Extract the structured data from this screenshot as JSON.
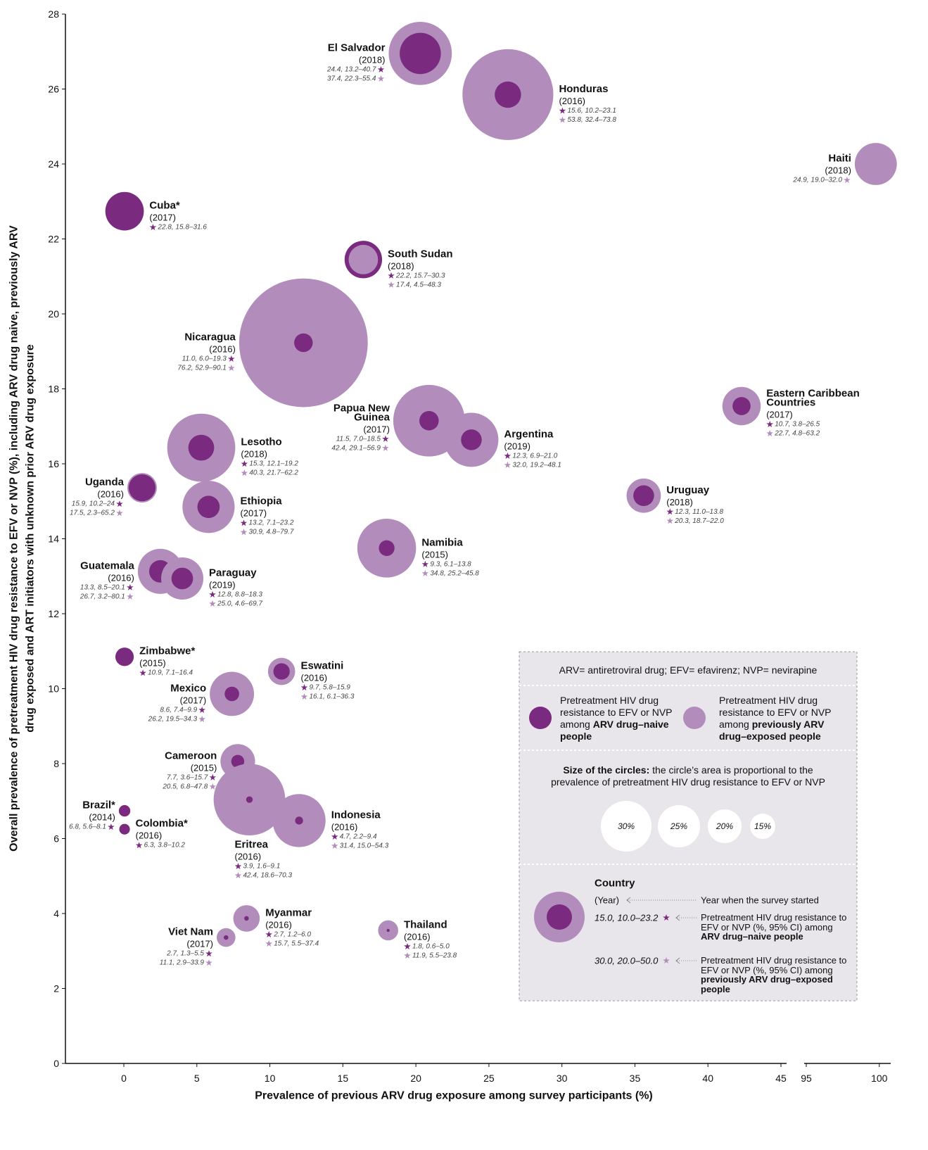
{
  "chart_data": {
    "type": "bubble",
    "xlabel": "Prevalence of previous ARV drug exposure among survey participants (%)",
    "ylabel": [
      "Overall prevalence of pretreatment HIV drug resistance to EFV or NVP (%), including ARV drug naive, previously ARV",
      "drug exposed and ART initiators with unknown prior ARV drug exposure"
    ],
    "xlim": [
      -4,
      100.7
    ],
    "xbreak": [
      45,
      95
    ],
    "xticks": [
      0,
      5,
      10,
      15,
      20,
      25,
      30,
      35,
      40,
      45,
      95,
      100
    ],
    "ylim": [
      0,
      28
    ],
    "yticks": [
      0,
      2,
      4,
      6,
      8,
      10,
      12,
      14,
      16,
      18,
      20,
      22,
      24,
      26,
      28
    ],
    "naive_color": "#7a2a7f",
    "exposed_color": "#b28dbb",
    "points": [
      {
        "name": [
          "El Salvador"
        ],
        "year": "(2018)",
        "x": 20.3,
        "y": 26.95,
        "naive": {
          "value": 24.4,
          "label": "24.4, 13.2–40.7"
        },
        "exposed": {
          "value": 37.4,
          "label": "37.4, 22.3–55.4"
        }
      },
      {
        "name": [
          "Honduras"
        ],
        "year": "(2016)",
        "x": 26.3,
        "y": 25.85,
        "naive": {
          "value": 15.6,
          "label": "15.6, 10.2–23.1"
        },
        "exposed": {
          "value": 53.8,
          "label": "53.8, 32.4–73.8"
        }
      },
      {
        "name": [
          "Haiti"
        ],
        "year": "(2018)",
        "x": 99.76,
        "y": 24.0,
        "exposed": {
          "value": 24.9,
          "label": "24.9, 19.0–32.0"
        }
      },
      {
        "name": [
          "Cuba*"
        ],
        "year": "(2017)",
        "x": 0.05,
        "y": 22.74,
        "naive": {
          "value": 22.8,
          "label": "22.8, 15.8–31.6"
        }
      },
      {
        "name": [
          "South Sudan"
        ],
        "year": "(2018)",
        "x": 16.4,
        "y": 21.45,
        "naive": {
          "value": 22.2,
          "label": "22.2, 15.7–30.3"
        },
        "exposed": {
          "value": 17.4,
          "label": "17.4, 4.5–48.3"
        }
      },
      {
        "name": [
          "Nicaragua"
        ],
        "year": "(2016)",
        "x": 12.3,
        "y": 19.23,
        "naive": {
          "value": 11.0,
          "label": "11.0, 6.0–19.3"
        },
        "exposed": {
          "value": 76.2,
          "label": "76.2, 52.9–90.1"
        }
      },
      {
        "name": [
          "Eastern Caribbean",
          "Countries"
        ],
        "year": "(2017)",
        "x": 42.3,
        "y": 17.54,
        "naive": {
          "value": 10.7,
          "label": "10.7, 3.8–26.5"
        },
        "exposed": {
          "value": 22.7,
          "label": "22.7, 4.8–63.2"
        }
      },
      {
        "name": [
          "Papua New",
          "Guinea"
        ],
        "year": "(2017)",
        "x": 20.9,
        "y": 17.15,
        "naive": {
          "value": 11.5,
          "label": "11.5, 7.0–18.5"
        },
        "exposed": {
          "value": 42.4,
          "label": "42.4, 29.1–56.9"
        }
      },
      {
        "name": [
          "Argentina"
        ],
        "year": "(2019)",
        "x": 23.8,
        "y": 16.64,
        "naive": {
          "value": 12.3,
          "label": "12.3, 6.9–21.0"
        },
        "exposed": {
          "value": 32.0,
          "label": "32.0, 19.2–48.1"
        }
      },
      {
        "name": [
          "Lesotho"
        ],
        "year": "(2018)",
        "x": 5.3,
        "y": 16.43,
        "naive": {
          "value": 15.3,
          "label": "15.3, 12.1–19.2"
        },
        "exposed": {
          "value": 40.3,
          "label": "40.3, 21.7–62.2"
        }
      },
      {
        "name": [
          "Uganda"
        ],
        "year": "(2016)",
        "x": 1.25,
        "y": 15.36,
        "naive": {
          "value": 15.9,
          "label": "15.9, 10.2–24"
        },
        "exposed": {
          "value": 17.5,
          "label": "17.5, 2.3–65.2"
        }
      },
      {
        "name": [
          "Ethiopia"
        ],
        "year": "(2017)",
        "x": 5.8,
        "y": 14.85,
        "naive": {
          "value": 13.2,
          "label": "13.2, 7.1–23.2"
        },
        "exposed": {
          "value": 30.9,
          "label": "30.9, 4.8–79.7"
        }
      },
      {
        "name": [
          "Uruguay"
        ],
        "year": "(2018)",
        "x": 35.6,
        "y": 15.15,
        "naive": {
          "value": 12.3,
          "label": "12.3, 11.0–13.8"
        },
        "exposed": {
          "value": 20.3,
          "label": "20.3, 18.7–22.0"
        }
      },
      {
        "name": [
          "Namibia"
        ],
        "year": "(2015)",
        "x": 18.0,
        "y": 13.75,
        "naive": {
          "value": 9.3,
          "label": "9.3, 6.1–13.8"
        },
        "exposed": {
          "value": 34.8,
          "label": "34.8, 25.2–45.8"
        }
      },
      {
        "name": [
          "Guatemala"
        ],
        "year": "(2016)",
        "x": 2.5,
        "y": 13.13,
        "naive": {
          "value": 13.3,
          "label": "13.3, 8.5–20.1"
        },
        "exposed": {
          "value": 26.7,
          "label": "26.7, 3.2–80.1"
        }
      },
      {
        "name": [
          "Paraguay"
        ],
        "year": "(2019)",
        "x": 4.0,
        "y": 12.94,
        "naive": {
          "value": 12.8,
          "label": "12.8, 8.8–18.3"
        },
        "exposed": {
          "value": 25.0,
          "label": "25.0, 4.6–69.7"
        }
      },
      {
        "name": [
          "Zimbabwe*"
        ],
        "year": "(2015)",
        "x": 0.05,
        "y": 10.85,
        "naive": {
          "value": 10.9,
          "label": "10.9, 7.1–16.4"
        }
      },
      {
        "name": [
          "Eswatini"
        ],
        "year": "(2016)",
        "x": 10.8,
        "y": 10.46,
        "naive": {
          "value": 9.7,
          "label": "9.7, 5.8–15.9"
        },
        "exposed": {
          "value": 16.1,
          "label": "16.1, 6.1–36.3"
        }
      },
      {
        "name": [
          "Mexico"
        ],
        "year": "(2017)",
        "x": 7.4,
        "y": 9.86,
        "naive": {
          "value": 8.6,
          "label": "8.6, 7.4–9.9"
        },
        "exposed": {
          "value": 26.2,
          "label": "26.2, 19.5–34.3"
        }
      },
      {
        "name": [
          "Cameroon"
        ],
        "year": "(2015)",
        "x": 7.8,
        "y": 8.06,
        "naive": {
          "value": 7.7,
          "label": "7.7, 3.6–15.7"
        },
        "exposed": {
          "value": 20.5,
          "label": "20.5, 6.8–47.8"
        }
      },
      {
        "name": [
          "Eritrea"
        ],
        "year": "(2016)",
        "x": 8.6,
        "y": 7.04,
        "naive": {
          "value": 3.9,
          "label": "3.9, 1.6–9.1"
        },
        "exposed": {
          "value": 42.4,
          "label": "42.4, 18.6–70.3"
        }
      },
      {
        "name": [
          "Indonesia"
        ],
        "year": "(2016)",
        "x": 12.0,
        "y": 6.48,
        "naive": {
          "value": 4.7,
          "label": "4.7, 2.2–9.4"
        },
        "exposed": {
          "value": 31.4,
          "label": "31.4, 15.0–54.3"
        }
      },
      {
        "name": [
          "Brazil*"
        ],
        "year": "(2014)",
        "x": 0.05,
        "y": 6.74,
        "naive": {
          "value": 6.8,
          "label": "6.8, 5.6–8.1"
        }
      },
      {
        "name": [
          "Colombia*"
        ],
        "year": "(2016)",
        "x": 0.05,
        "y": 6.25,
        "naive": {
          "value": 6.3,
          "label": "6.3, 3.8–10.2"
        }
      },
      {
        "name": [
          "Myanmar"
        ],
        "year": "(2016)",
        "x": 8.4,
        "y": 3.87,
        "naive": {
          "value": 2.7,
          "label": "2.7, 1.2–6.0"
        },
        "exposed": {
          "value": 15.7,
          "label": "15.7, 5.5–37.4"
        }
      },
      {
        "name": [
          "Viet Nam"
        ],
        "year": "(2017)",
        "x": 7.0,
        "y": 3.36,
        "naive": {
          "value": 2.7,
          "label": "2.7, 1.3–5.5"
        },
        "exposed": {
          "value": 11.1,
          "label": "11.1, 2.9–33.9"
        }
      },
      {
        "name": [
          "Thailand"
        ],
        "year": "(2016)",
        "x": 18.1,
        "y": 3.55,
        "naive": {
          "value": 1.8,
          "label": "1.8, 0.6–5.0"
        },
        "exposed": {
          "value": 11.9,
          "label": "11.9, 5.5–23.8"
        }
      }
    ],
    "legend": {
      "abbreviations": "ARV= antiretroviral drug; EFV= efavirenz; NVP= nevirapine",
      "naive_key": {
        "text": "Pretreatment HIV drug resistance to EFV or NVP among ",
        "bold": "ARV drug–naive people"
      },
      "exposed_key": {
        "text": "Pretreatment HIV drug resistance to EFV or NVP among ",
        "bold": "previously ARV drug–exposed people"
      },
      "size_note": {
        "bold": "Size of the circles:",
        "text": " the circle’s area is proportional to the prevalence of pretreatment HIV drug resistance to EFV or NVP"
      },
      "sizes": [
        {
          "value": 30,
          "label": "30%"
        },
        {
          "value": 25,
          "label": "25%"
        },
        {
          "value": 20,
          "label": "20%"
        },
        {
          "value": 15,
          "label": "15%"
        }
      ],
      "sample": {
        "name": "Country",
        "year": "(Year)",
        "year_note": "Year when the survey started",
        "naive": {
          "value": 15.0,
          "label": "15.0, 10.0–23.2"
        },
        "exposed": {
          "value": 30.0,
          "label": "30.0, 20.0–50.0"
        },
        "naive_note": {
          "text": "Pretreatment HIV drug resistance to EFV or NVP (%, 95% CI) among ",
          "bold": "ARV drug–naive people"
        },
        "exposed_note": {
          "text": "Pretreatment HIV drug resistance to EFV or NVP (%, 95% CI) among ",
          "bold": "previously ARV drug–exposed people"
        }
      }
    }
  }
}
